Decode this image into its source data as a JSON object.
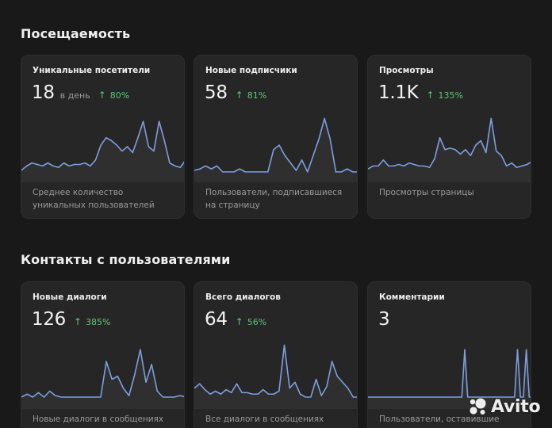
{
  "sections": [
    {
      "title": "Посещаемость",
      "cards": [
        {
          "title": "Уникальные посетители",
          "value": "18",
          "unit": "в день",
          "change": "80%",
          "change_icon": "arrow-up-icon",
          "description": "Среднее количество уникальных пользователей",
          "sparkline": [
            8,
            11,
            13,
            12,
            11,
            13,
            11,
            10,
            13,
            11,
            12,
            12,
            13,
            11,
            15,
            25,
            30,
            28,
            25,
            21,
            24,
            20,
            30,
            41,
            24,
            21,
            41,
            28,
            13,
            11,
            10,
            15
          ]
        },
        {
          "title": "Новые подписчики",
          "value": "58",
          "change": "81%",
          "change_icon": "arrow-up-icon",
          "description": "Пользователи, подписавшиеся на страницу",
          "sparkline": [
            8,
            9,
            11,
            9,
            11,
            7,
            7,
            7,
            9,
            7,
            7,
            7,
            7,
            7,
            22,
            25,
            18,
            13,
            8,
            15,
            7,
            18,
            29,
            43,
            29,
            7,
            7,
            9,
            7,
            7
          ]
        },
        {
          "title": "Просмотры",
          "value": "1.1K",
          "change": "135%",
          "change_icon": "arrow-up-icon",
          "description": "Просмотры страницы",
          "sparkline": [
            9,
            11,
            11,
            15,
            11,
            11,
            12,
            11,
            13,
            12,
            11,
            11,
            10,
            16,
            30,
            22,
            23,
            22,
            19,
            22,
            18,
            25,
            28,
            20,
            43,
            21,
            18,
            11,
            13,
            10,
            11,
            12,
            14
          ]
        }
      ]
    },
    {
      "title": "Контакты с пользователями",
      "cards": [
        {
          "title": "Новые диалоги",
          "value": "126",
          "change": "385%",
          "change_icon": "arrow-up-icon",
          "description": "Новые диалоги в сообщениях",
          "sparkline": [
            8,
            10,
            8,
            11,
            8,
            12,
            9,
            8,
            8,
            8,
            8,
            8,
            8,
            8,
            8,
            32,
            20,
            22,
            14,
            9,
            23,
            40,
            18,
            30,
            12,
            8,
            8,
            8,
            9,
            8
          ]
        },
        {
          "title": "Всего диалогов",
          "value": "64",
          "change": "56%",
          "change_icon": "arrow-up-icon",
          "description": "Все диалоги в сообщениях",
          "sparkline": [
            14,
            17,
            13,
            10,
            12,
            10,
            13,
            11,
            17,
            11,
            11,
            10,
            10,
            13,
            10,
            10,
            12,
            43,
            14,
            18,
            10,
            8,
            8,
            20,
            9,
            15,
            32,
            22,
            18,
            14,
            8,
            8
          ]
        },
        {
          "title": "Комментарии",
          "value": "3",
          "description": "Пользователи, оставившие",
          "sparkline": [
            8,
            8,
            8,
            8,
            8,
            8,
            8,
            8,
            8,
            8,
            8,
            8,
            8,
            8,
            8,
            8,
            8,
            8,
            8,
            8,
            8,
            8,
            8,
            8,
            8,
            8,
            8,
            8,
            8,
            8,
            8,
            8,
            8,
            40,
            8,
            8,
            8,
            8,
            8,
            8,
            8,
            8,
            8,
            8,
            8,
            8,
            8,
            8,
            8,
            8,
            8,
            40,
            8,
            8,
            40,
            8,
            8
          ]
        }
      ]
    }
  ],
  "colors": {
    "sparkline_stroke": "#7d9fe0",
    "change_positive": "#5ec776"
  },
  "watermark": {
    "text": "Avito",
    "icon": "avito-logo-icon"
  }
}
